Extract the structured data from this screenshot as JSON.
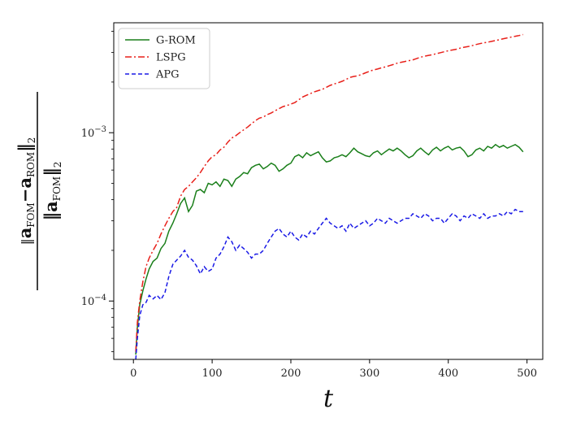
{
  "chart_data": {
    "type": "line",
    "xlabel": "t",
    "ylabel": {
      "num_a": "a",
      "num_a_sub": "FOM",
      "minus": "−",
      "num_b": "a",
      "num_b_sub": "ROM",
      "num_norm_sub": "2",
      "den_a": "a",
      "den_a_sub": "FOM",
      "den_norm_sub": "2"
    },
    "yscale": "log",
    "xlim": [
      -25,
      520
    ],
    "ylim": [
      4.5e-05,
      0.0045
    ],
    "xticks": [
      0,
      100,
      200,
      300,
      400,
      500
    ],
    "xtick_labels": [
      "0",
      "100",
      "200",
      "300",
      "400",
      "500"
    ],
    "yticks": [
      {
        "value": 0.0001,
        "base": "10",
        "exp": "−4"
      },
      {
        "value": 0.001,
        "base": "10",
        "exp": "−3"
      }
    ],
    "grid": false,
    "legend_position": "top-left",
    "series": [
      {
        "name": "G-ROM",
        "color": "#1a7f1a",
        "dash": "solid",
        "x": [
          3,
          5,
          8,
          12,
          16,
          20,
          25,
          30,
          35,
          40,
          45,
          50,
          55,
          60,
          65,
          70,
          75,
          80,
          85,
          90,
          95,
          100,
          105,
          110,
          115,
          120,
          125,
          130,
          135,
          140,
          145,
          150,
          155,
          160,
          165,
          170,
          175,
          180,
          185,
          190,
          195,
          200,
          205,
          210,
          215,
          220,
          225,
          230,
          235,
          240,
          245,
          250,
          255,
          260,
          265,
          270,
          275,
          280,
          285,
          290,
          295,
          300,
          305,
          310,
          315,
          320,
          325,
          330,
          335,
          340,
          345,
          350,
          355,
          360,
          365,
          370,
          375,
          380,
          385,
          390,
          395,
          400,
          405,
          410,
          415,
          420,
          425,
          430,
          435,
          440,
          445,
          450,
          455,
          460,
          465,
          470,
          475,
          480,
          485,
          490,
          495
        ],
        "y": [
          4.8e-05,
          7e-05,
          9.5e-05,
          0.000115,
          0.000135,
          0.000155,
          0.000172,
          0.00018,
          0.000205,
          0.00022,
          0.00026,
          0.00029,
          0.00033,
          0.00038,
          0.00041,
          0.00034,
          0.00037,
          0.00045,
          0.00046,
          0.00044,
          0.0005,
          0.00049,
          0.00051,
          0.00048,
          0.00053,
          0.00052,
          0.00048,
          0.00053,
          0.00055,
          0.00058,
          0.00057,
          0.00062,
          0.00064,
          0.00065,
          0.00061,
          0.00063,
          0.00066,
          0.00064,
          0.00059,
          0.00061,
          0.00064,
          0.00066,
          0.00072,
          0.00074,
          0.00071,
          0.00076,
          0.00073,
          0.00075,
          0.00077,
          0.00071,
          0.00067,
          0.00068,
          0.00071,
          0.00072,
          0.00074,
          0.00072,
          0.00076,
          0.00081,
          0.00077,
          0.00075,
          0.00073,
          0.00072,
          0.00076,
          0.00078,
          0.00074,
          0.00077,
          0.0008,
          0.00078,
          0.00081,
          0.00078,
          0.00074,
          0.00071,
          0.00073,
          0.00078,
          0.00081,
          0.00077,
          0.00074,
          0.00079,
          0.00082,
          0.00078,
          0.00081,
          0.00083,
          0.00079,
          0.00081,
          0.00082,
          0.00078,
          0.00072,
          0.00074,
          0.00079,
          0.00081,
          0.00078,
          0.00083,
          0.00081,
          0.00085,
          0.00082,
          0.00084,
          0.00081,
          0.00083,
          0.00085,
          0.00082,
          0.00077
        ]
      },
      {
        "name": "LSPG",
        "color": "#e8201a",
        "dash": "8,3,2,3",
        "x": [
          3,
          5,
          8,
          12,
          16,
          20,
          25,
          30,
          35,
          40,
          45,
          50,
          55,
          60,
          65,
          70,
          75,
          80,
          85,
          90,
          95,
          100,
          105,
          110,
          115,
          120,
          125,
          130,
          135,
          140,
          145,
          150,
          155,
          160,
          165,
          170,
          175,
          180,
          185,
          190,
          195,
          200,
          205,
          210,
          215,
          220,
          225,
          230,
          235,
          240,
          245,
          250,
          255,
          260,
          265,
          270,
          275,
          280,
          285,
          290,
          295,
          300,
          305,
          310,
          315,
          320,
          325,
          330,
          335,
          340,
          345,
          350,
          355,
          360,
          365,
          370,
          375,
          380,
          385,
          390,
          395,
          400,
          405,
          410,
          415,
          420,
          425,
          430,
          435,
          440,
          445,
          450,
          455,
          460,
          465,
          470,
          475,
          480,
          485,
          490,
          495
        ],
        "y": [
          5e-05,
          7.5e-05,
          0.0001,
          0.00013,
          0.00016,
          0.00018,
          0.0002,
          0.00022,
          0.00025,
          0.00028,
          0.00031,
          0.00034,
          0.00036,
          0.00042,
          0.00046,
          0.00048,
          0.00051,
          0.00054,
          0.00058,
          0.00063,
          0.00068,
          0.00072,
          0.00074,
          0.00079,
          0.00082,
          0.00088,
          0.00093,
          0.00096,
          0.001,
          0.00104,
          0.00108,
          0.00113,
          0.00118,
          0.00122,
          0.00124,
          0.00128,
          0.00131,
          0.00135,
          0.00139,
          0.00143,
          0.00145,
          0.00148,
          0.00151,
          0.00157,
          0.00163,
          0.00167,
          0.00171,
          0.00175,
          0.00178,
          0.00181,
          0.00186,
          0.00191,
          0.00195,
          0.00198,
          0.00202,
          0.00207,
          0.00213,
          0.00216,
          0.00218,
          0.00222,
          0.00227,
          0.00232,
          0.00236,
          0.00239,
          0.00243,
          0.00246,
          0.0025,
          0.00254,
          0.00259,
          0.00262,
          0.00265,
          0.00268,
          0.00271,
          0.00276,
          0.00281,
          0.00285,
          0.00288,
          0.00291,
          0.00295,
          0.00299,
          0.00303,
          0.00307,
          0.0031,
          0.00313,
          0.00318,
          0.00322,
          0.00325,
          0.00329,
          0.00334,
          0.00338,
          0.00342,
          0.00345,
          0.00349,
          0.00353,
          0.00357,
          0.00362,
          0.00366,
          0.0037,
          0.00374,
          0.00378,
          0.00383
        ]
      },
      {
        "name": "APG",
        "color": "#1a1ae6",
        "dash": "5,3",
        "x": [
          3,
          5,
          8,
          12,
          16,
          20,
          25,
          30,
          35,
          40,
          45,
          50,
          55,
          60,
          65,
          70,
          75,
          80,
          85,
          90,
          95,
          100,
          105,
          110,
          115,
          120,
          125,
          130,
          135,
          140,
          145,
          150,
          155,
          160,
          165,
          170,
          175,
          180,
          185,
          190,
          195,
          200,
          205,
          210,
          215,
          220,
          225,
          230,
          235,
          240,
          245,
          250,
          255,
          260,
          265,
          270,
          275,
          280,
          285,
          290,
          295,
          300,
          305,
          310,
          315,
          320,
          325,
          330,
          335,
          340,
          345,
          350,
          355,
          360,
          365,
          370,
          375,
          380,
          385,
          390,
          395,
          400,
          405,
          410,
          415,
          420,
          425,
          430,
          435,
          440,
          445,
          450,
          455,
          460,
          465,
          470,
          475,
          480,
          485,
          490,
          495
        ],
        "y": [
          4.5e-05,
          6e-05,
          8.2e-05,
          9.5e-05,
          9.8e-05,
          0.000108,
          0.000103,
          0.000108,
          0.000102,
          0.000112,
          0.00014,
          0.000165,
          0.000175,
          0.000185,
          0.0002,
          0.000182,
          0.000175,
          0.000162,
          0.000145,
          0.00016,
          0.00015,
          0.000155,
          0.00018,
          0.00019,
          0.00021,
          0.00024,
          0.000225,
          0.0002,
          0.000215,
          0.000205,
          0.000195,
          0.00018,
          0.00019,
          0.00019,
          0.0002,
          0.00022,
          0.00024,
          0.00026,
          0.00027,
          0.00025,
          0.00024,
          0.00026,
          0.00024,
          0.00023,
          0.00025,
          0.00024,
          0.00026,
          0.00025,
          0.00027,
          0.00029,
          0.00031,
          0.00029,
          0.00028,
          0.00027,
          0.00028,
          0.00026,
          0.00029,
          0.00027,
          0.00028,
          0.00029,
          0.0003,
          0.00028,
          0.00029,
          0.00031,
          0.0003,
          0.00029,
          0.00031,
          0.0003,
          0.00029,
          0.0003,
          0.00031,
          0.00031,
          0.00033,
          0.00032,
          0.00031,
          0.00033,
          0.00032,
          0.0003,
          0.00031,
          0.00031,
          0.00029,
          0.00031,
          0.00033,
          0.00032,
          0.0003,
          0.00032,
          0.00031,
          0.00033,
          0.00032,
          0.00031,
          0.00033,
          0.00031,
          0.00032,
          0.00032,
          0.00033,
          0.00032,
          0.00034,
          0.00033,
          0.00035,
          0.00034,
          0.00034
        ]
      }
    ]
  }
}
